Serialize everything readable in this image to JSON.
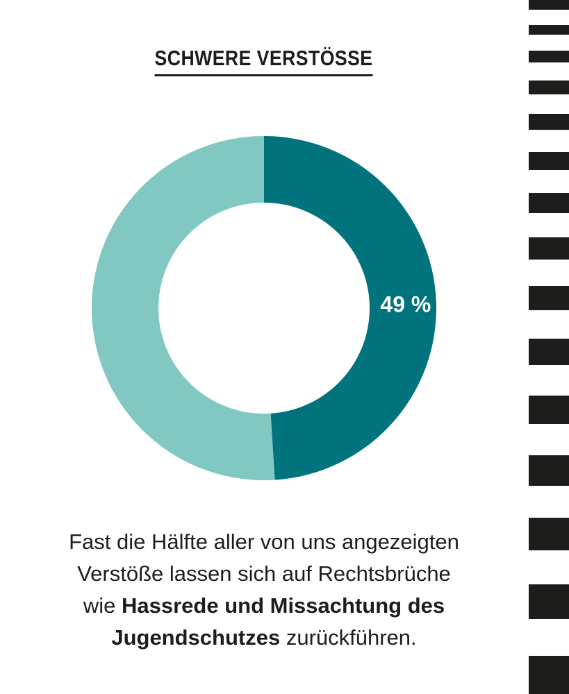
{
  "title": "SCHWERE VERSTÖSSE",
  "chart_data": {
    "type": "pie",
    "style": "donut",
    "title": "SCHWERE VERSTÖSSE",
    "slices": [
      {
        "label": "49 %",
        "value": 49,
        "color": "#00737d"
      },
      {
        "label": "",
        "value": 51,
        "color": "#80c8c1"
      }
    ]
  },
  "caption": {
    "line1": "Fast die Hälfte aller von uns angezeigten",
    "line2": "Verstöße lassen sich auf Rechtsbrüche",
    "line3_pre": "wie ",
    "line3_bold": "Hassrede und Missachtung des",
    "line4_bold": "Jugendschutzes",
    "line4_post": " zurückführen."
  },
  "colors": {
    "primary": "#00737d",
    "secondary": "#80c8c1",
    "text": "#1d1d1b"
  }
}
